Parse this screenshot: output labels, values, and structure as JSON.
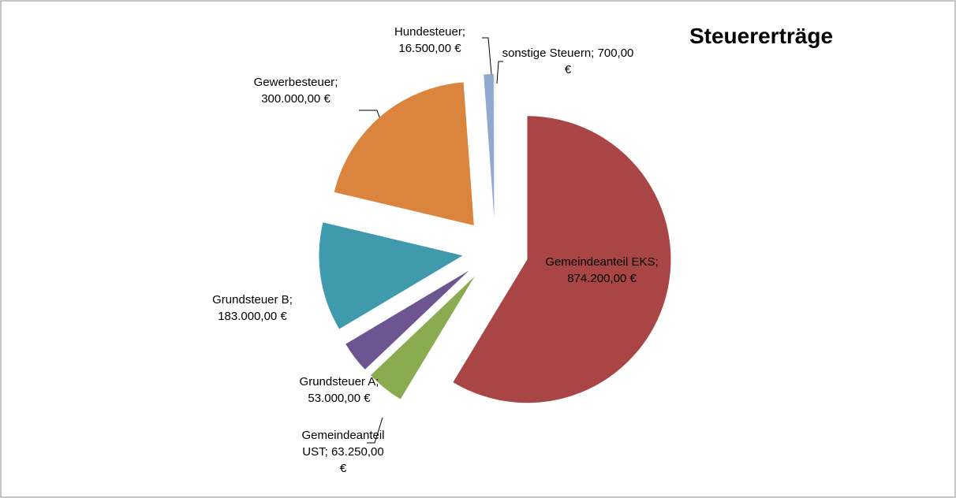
{
  "chart_data": {
    "type": "pie",
    "title": "Steuererträge",
    "categories": [
      "Gemeindeanteil EKS",
      "Gemeindeanteil UST",
      "Grundsteuer A",
      "Grundsteuer B",
      "Gewerbesteuer",
      "Hundesteuer",
      "sonstige Steuern"
    ],
    "values": [
      874200,
      63250,
      53000,
      183000,
      300000,
      16500,
      700
    ],
    "value_labels": [
      "874.200,00 €",
      "63.250,00 €",
      "53.000,00 €",
      "183.000,00 €",
      "300.000,00 €",
      "16.500,00 €",
      "700,00 €"
    ],
    "separator": ";",
    "colors": [
      "#a94545",
      "#8aab4f",
      "#6c5591",
      "#3f9aae",
      "#db843d",
      "#92a9cf",
      "#c9d6e8"
    ],
    "exploded": true
  }
}
